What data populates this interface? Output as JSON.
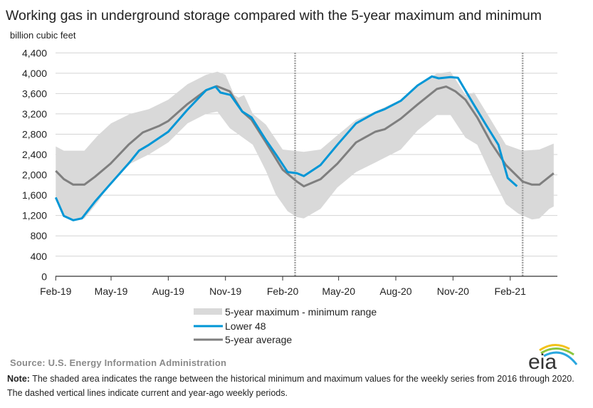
{
  "chart_data": {
    "type": "area",
    "title": "Working gas in underground  storage compared with the 5-year maximum and minimum",
    "ylabel": "billion cubic feet",
    "xlabel": "",
    "ylim": [
      0,
      4400
    ],
    "xlim": [
      "2019-02-01",
      "2021-04-18"
    ],
    "yticks": [
      "0",
      "400",
      "800",
      "1,200",
      "1,600",
      "2,000",
      "2,400",
      "2,800",
      "3,200",
      "3,600",
      "4,000",
      "4,400"
    ],
    "ytick_values": [
      0,
      400,
      800,
      1200,
      1600,
      2000,
      2400,
      2800,
      3200,
      3600,
      4000,
      4400
    ],
    "xticks": [
      {
        "label": "Feb-19",
        "date": "2019-02-01"
      },
      {
        "label": "May-19",
        "date": "2019-05-01"
      },
      {
        "label": "Aug-19",
        "date": "2019-08-01"
      },
      {
        "label": "Nov-19",
        "date": "2019-11-01"
      },
      {
        "label": "Feb-20",
        "date": "2020-02-01"
      },
      {
        "label": "May-20",
        "date": "2020-05-01"
      },
      {
        "label": "Aug-20",
        "date": "2020-08-01"
      },
      {
        "label": "Nov-20",
        "date": "2020-11-01"
      },
      {
        "label": "Feb-21",
        "date": "2021-02-01"
      }
    ],
    "grid": "horizontal",
    "legend_position": "bottom",
    "dashed_lines": [
      "2020-02-21",
      "2021-02-21"
    ],
    "colors": {
      "range": "#d9d9d9",
      "lower48": "#0096d6",
      "average": "#7f7f7f"
    },
    "series": [
      {
        "name": "5-year maximum - minimum range",
        "kind": "band",
        "max": [
          [
            "2019-02-01",
            2560
          ],
          [
            "2019-02-14",
            2476
          ],
          [
            "2019-03-19",
            2476
          ],
          [
            "2019-04-10",
            2779
          ],
          [
            "2019-05-01",
            3013
          ],
          [
            "2019-06-01",
            3200
          ],
          [
            "2019-07-01",
            3293
          ],
          [
            "2019-08-01",
            3480
          ],
          [
            "2019-09-01",
            3784
          ],
          [
            "2019-10-01",
            3970
          ],
          [
            "2019-10-19",
            4031
          ],
          [
            "2019-11-01",
            3970
          ],
          [
            "2019-11-15",
            3573
          ],
          [
            "2019-11-22",
            3520
          ],
          [
            "2019-12-01",
            3570
          ],
          [
            "2019-12-15",
            3200
          ],
          [
            "2020-01-05",
            2989
          ],
          [
            "2020-02-01",
            2499
          ],
          [
            "2020-03-06",
            2452
          ],
          [
            "2020-04-02",
            2499
          ],
          [
            "2020-04-29",
            2779
          ],
          [
            "2020-05-29",
            3083
          ],
          [
            "2020-06-29",
            3246
          ],
          [
            "2020-08-09",
            3480
          ],
          [
            "2020-09-05",
            3760
          ],
          [
            "2020-10-06",
            3994
          ],
          [
            "2020-10-28",
            4031
          ],
          [
            "2020-11-21",
            3573
          ],
          [
            "2020-12-05",
            3620
          ],
          [
            "2021-01-02",
            3060
          ],
          [
            "2021-01-25",
            2592
          ],
          [
            "2021-02-21",
            2476
          ],
          [
            "2021-03-20",
            2499
          ],
          [
            "2021-04-12",
            2616
          ]
        ],
        "min": [
          [
            "2019-02-01",
            1555
          ],
          [
            "2019-02-14",
            1190
          ],
          [
            "2019-03-01",
            1100
          ],
          [
            "2019-03-19",
            1140
          ],
          [
            "2019-04-10",
            1471
          ],
          [
            "2019-05-01",
            1845
          ],
          [
            "2019-06-01",
            2219
          ],
          [
            "2019-07-01",
            2405
          ],
          [
            "2019-08-01",
            2639
          ],
          [
            "2019-09-01",
            3013
          ],
          [
            "2019-10-01",
            3200
          ],
          [
            "2019-10-19",
            3246
          ],
          [
            "2019-11-08",
            2919
          ],
          [
            "2019-11-29",
            2733
          ],
          [
            "2019-12-15",
            2592
          ],
          [
            "2020-01-05",
            2079
          ],
          [
            "2020-01-21",
            1611
          ],
          [
            "2020-02-09",
            1285
          ],
          [
            "2020-02-24",
            1168
          ],
          [
            "2020-03-06",
            1144
          ],
          [
            "2020-04-02",
            1331
          ],
          [
            "2020-04-29",
            1752
          ],
          [
            "2020-05-29",
            2055
          ],
          [
            "2020-06-29",
            2242
          ],
          [
            "2020-08-09",
            2499
          ],
          [
            "2020-09-05",
            2873
          ],
          [
            "2020-10-06",
            3176
          ],
          [
            "2020-10-28",
            3176
          ],
          [
            "2020-11-21",
            2733
          ],
          [
            "2020-12-10",
            2592
          ],
          [
            "2021-01-02",
            1985
          ],
          [
            "2021-01-25",
            1425
          ],
          [
            "2021-02-14",
            1238
          ],
          [
            "2021-03-08",
            1121
          ],
          [
            "2021-03-20",
            1144
          ],
          [
            "2021-04-05",
            1331
          ],
          [
            "2021-04-12",
            1378
          ]
        ]
      },
      {
        "name": "Lower 48",
        "kind": "line",
        "points": [
          [
            "2019-02-01",
            1555
          ],
          [
            "2019-02-14",
            1191
          ],
          [
            "2019-03-01",
            1107
          ],
          [
            "2019-03-15",
            1144
          ],
          [
            "2019-04-05",
            1471
          ],
          [
            "2019-04-30",
            1822
          ],
          [
            "2019-06-01",
            2265
          ],
          [
            "2019-06-15",
            2476
          ],
          [
            "2019-07-01",
            2592
          ],
          [
            "2019-08-01",
            2849
          ],
          [
            "2019-08-31",
            3270
          ],
          [
            "2019-10-01",
            3667
          ],
          [
            "2019-10-16",
            3737
          ],
          [
            "2019-10-24",
            3620
          ],
          [
            "2019-11-09",
            3573
          ],
          [
            "2019-11-28",
            3246
          ],
          [
            "2019-12-13",
            3130
          ],
          [
            "2020-01-05",
            2686
          ],
          [
            "2020-01-21",
            2405
          ],
          [
            "2020-02-09",
            2055
          ],
          [
            "2020-02-24",
            2032
          ],
          [
            "2020-03-06",
            1976
          ],
          [
            "2020-04-02",
            2195
          ],
          [
            "2020-04-29",
            2592
          ],
          [
            "2020-05-29",
            3013
          ],
          [
            "2020-06-29",
            3223
          ],
          [
            "2020-07-14",
            3293
          ],
          [
            "2020-08-09",
            3457
          ],
          [
            "2020-09-05",
            3760
          ],
          [
            "2020-09-28",
            3938
          ],
          [
            "2020-10-09",
            3900
          ],
          [
            "2020-10-28",
            3924
          ],
          [
            "2020-11-09",
            3910
          ],
          [
            "2020-12-02",
            3433
          ],
          [
            "2020-12-25",
            2966
          ],
          [
            "2021-01-13",
            2592
          ],
          [
            "2021-01-28",
            1938
          ],
          [
            "2021-02-12",
            1775
          ]
        ]
      },
      {
        "name": "5-year average",
        "kind": "line",
        "points": [
          [
            "2019-02-01",
            2079
          ],
          [
            "2019-02-14",
            1915
          ],
          [
            "2019-03-01",
            1808
          ],
          [
            "2019-03-19",
            1808
          ],
          [
            "2019-04-05",
            1962
          ],
          [
            "2019-04-30",
            2219
          ],
          [
            "2019-05-29",
            2592
          ],
          [
            "2019-06-21",
            2835
          ],
          [
            "2019-07-18",
            2966
          ],
          [
            "2019-08-01",
            3060
          ],
          [
            "2019-08-31",
            3386
          ],
          [
            "2019-10-01",
            3667
          ],
          [
            "2019-10-18",
            3746
          ],
          [
            "2019-11-08",
            3643
          ],
          [
            "2019-11-28",
            3246
          ],
          [
            "2019-12-13",
            3083
          ],
          [
            "2020-01-05",
            2639
          ],
          [
            "2020-02-01",
            2102
          ],
          [
            "2020-02-24",
            1868
          ],
          [
            "2020-03-06",
            1775
          ],
          [
            "2020-04-02",
            1915
          ],
          [
            "2020-04-29",
            2219
          ],
          [
            "2020-05-29",
            2639
          ],
          [
            "2020-06-29",
            2849
          ],
          [
            "2020-07-14",
            2896
          ],
          [
            "2020-08-09",
            3106
          ],
          [
            "2020-09-05",
            3386
          ],
          [
            "2020-10-06",
            3690
          ],
          [
            "2020-10-21",
            3737
          ],
          [
            "2020-11-05",
            3643
          ],
          [
            "2020-11-21",
            3480
          ],
          [
            "2020-12-10",
            3130
          ],
          [
            "2021-01-02",
            2616
          ],
          [
            "2021-01-25",
            2195
          ],
          [
            "2021-02-21",
            1868
          ],
          [
            "2021-03-08",
            1808
          ],
          [
            "2021-03-20",
            1808
          ],
          [
            "2021-04-12",
            2032
          ]
        ]
      }
    ]
  },
  "legend": {
    "range": "5-year maximum - minimum range",
    "lower48": "Lower 48",
    "average": "5-year average"
  },
  "source": "Source:  U.S. Energy Information Administration",
  "note_label": "Note:",
  "note_text": " The shaded area indicates the range between the historical minimum and maximum values for the weekly series from 2016 through 2020. The dashed vertical lines indicate current and year-ago weekly periods.",
  "logo_text": "eia"
}
